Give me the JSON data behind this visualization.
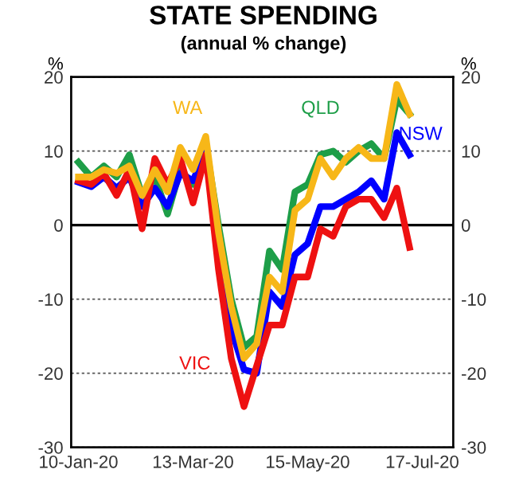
{
  "chart_data": {
    "type": "line",
    "title": "STATE SPENDING",
    "subtitle": "(annual % change)",
    "ylabel": "%",
    "y2label": "%",
    "x": [
      "2020-01-10",
      "2020-01-17",
      "2020-01-24",
      "2020-01-31",
      "2020-02-07",
      "2020-02-14",
      "2020-02-21",
      "2020-02-28",
      "2020-03-06",
      "2020-03-13",
      "2020-03-20",
      "2020-03-27",
      "2020-04-03",
      "2020-04-10",
      "2020-04-17",
      "2020-04-24",
      "2020-05-01",
      "2020-05-08",
      "2020-05-15",
      "2020-05-22",
      "2020-05-29",
      "2020-06-05",
      "2020-06-12",
      "2020-06-19",
      "2020-06-26",
      "2020-07-03",
      "2020-07-10"
    ],
    "series": [
      {
        "name": "QLD",
        "color": "#1e9e48",
        "values": [
          8.5,
          6.5,
          8,
          6.5,
          9.5,
          4,
          6.5,
          1.5,
          7.5,
          5.5,
          11,
          0,
          -10,
          -16.5,
          -15,
          -3.5,
          -6,
          4.5,
          5.5,
          9.5,
          10,
          8.5,
          10,
          11,
          9,
          17,
          15
        ]
      },
      {
        "name": "NSW",
        "color": "#0000ff",
        "values": [
          5.8,
          5.2,
          6.5,
          5,
          6.5,
          2.5,
          5,
          2.5,
          7,
          6,
          10,
          -3,
          -14,
          -19.5,
          -20,
          -9,
          -11,
          -4,
          -2.5,
          2.5,
          2.5,
          3.5,
          4.5,
          6,
          3.5,
          12.5,
          9.5
        ]
      },
      {
        "name": "VIC",
        "color": "#ee1111",
        "values": [
          6,
          5.5,
          7,
          4,
          7.5,
          -0.5,
          9,
          5.5,
          9,
          3,
          9.5,
          -6,
          -18,
          -24.5,
          -19,
          -13.5,
          -13.5,
          -7,
          -7,
          -0.5,
          -1.5,
          2.5,
          3.5,
          3.5,
          1,
          5,
          -3
        ]
      },
      {
        "name": "WA",
        "color": "#f7b718",
        "values": [
          6.5,
          6.5,
          7.5,
          7,
          8,
          4,
          7.5,
          4.5,
          10.5,
          7.5,
          12,
          -1,
          -11,
          -18,
          -16,
          -7,
          -9,
          2,
          3.5,
          9,
          6.5,
          9,
          10.5,
          9,
          9,
          19,
          15
        ]
      }
    ],
    "xlim": [
      "2020-01-06",
      "2020-08-03"
    ],
    "xticks": [
      {
        "value": "2020-01-10",
        "label": "10-Jan-20"
      },
      {
        "value": "2020-03-13",
        "label": "13-Mar-20"
      },
      {
        "value": "2020-05-15",
        "label": "15-May-20"
      },
      {
        "value": "2020-07-17",
        "label": "17-Jul-20"
      }
    ],
    "ylim": [
      -30,
      20
    ],
    "yticks": [
      -30,
      -20,
      -10,
      0,
      10,
      20
    ],
    "y2lim": [
      -30,
      20
    ],
    "y2ticks": [
      -30,
      -20,
      -10,
      0,
      10,
      20
    ],
    "ref_lines": [
      {
        "axis": "y",
        "value": 0,
        "color": "#000000",
        "line_style": "solid"
      }
    ],
    "grid": "y",
    "legend": false,
    "marker": "none",
    "line_style": "solid"
  }
}
